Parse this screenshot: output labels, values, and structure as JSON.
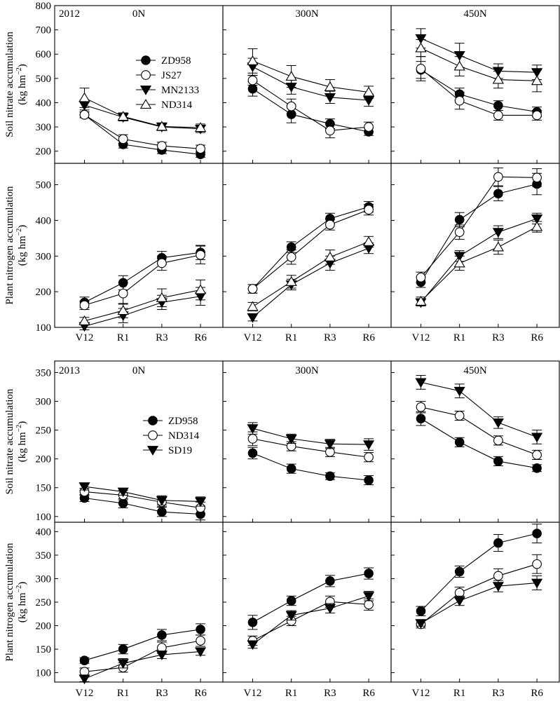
{
  "figure": {
    "x_categories": [
      "V12",
      "R1",
      "R3",
      "R6"
    ],
    "columns": [
      "0N",
      "300N",
      "450N"
    ],
    "y_axis_labels": {
      "soil": {
        "line1": "Soil nitrate accumulation",
        "line2_base": "(kg hm",
        "line2_sup": "−2",
        "line2_end": ")"
      },
      "plant": {
        "line1": "Plant nitrogen accumulation",
        "line2_base": "(kg hm",
        "line2_sup": "−2",
        "line2_end": ")"
      }
    }
  },
  "chart_data": [
    {
      "type": "line",
      "block": "2012",
      "year_label": "2012",
      "show_legend": true,
      "legend_location": "upper-left panel (0N soil)",
      "categories": [
        "V12",
        "R1",
        "R3",
        "R6"
      ],
      "series_styles": [
        {
          "name": "ZD958",
          "marker": "filled-circle"
        },
        {
          "name": "JS27",
          "marker": "open-circle"
        },
        {
          "name": "MN2133",
          "marker": "filled-triangle-down"
        },
        {
          "name": "ND314",
          "marker": "open-triangle-up"
        }
      ],
      "rows": [
        {
          "key": "soil",
          "ylim": [
            150,
            800
          ],
          "yticks": [
            200,
            300,
            400,
            500,
            600,
            700,
            800
          ],
          "panels": [
            {
              "column": "0N",
              "series": [
                {
                  "name": "ZD958",
                  "values": [
                    350,
                    228,
                    205,
                    187
                  ],
                  "errors": [
                    12,
                    15,
                    15,
                    12
                  ]
                },
                {
                  "name": "JS27",
                  "values": [
                    350,
                    250,
                    222,
                    210
                  ],
                  "errors": [
                    12,
                    18,
                    15,
                    15
                  ]
                },
                {
                  "name": "MN2133",
                  "values": [
                    390,
                    340,
                    300,
                    292
                  ],
                  "errors": [
                    20,
                    15,
                    15,
                    15
                  ]
                },
                {
                  "name": "ND314",
                  "values": [
                    420,
                    343,
                    302,
                    297
                  ],
                  "errors": [
                    40,
                    15,
                    15,
                    15
                  ]
                }
              ]
            },
            {
              "column": "300N",
              "series": [
                {
                  "name": "ZD958",
                  "values": [
                    457,
                    352,
                    313,
                    280
                  ],
                  "errors": [
                    30,
                    35,
                    20,
                    15
                  ]
                },
                {
                  "name": "JS27",
                  "values": [
                    492,
                    385,
                    285,
                    300
                  ],
                  "errors": [
                    20,
                    30,
                    30,
                    20
                  ]
                },
                {
                  "name": "MN2133",
                  "values": [
                    548,
                    465,
                    422,
                    410
                  ],
                  "errors": [
                    35,
                    30,
                    25,
                    25
                  ]
                },
                {
                  "name": "ND314",
                  "values": [
                    572,
                    508,
                    465,
                    443
                  ],
                  "errors": [
                    50,
                    45,
                    30,
                    25
                  ]
                }
              ]
            },
            {
              "column": "450N",
              "series": [
                {
                  "name": "ZD958",
                  "values": [
                    535,
                    435,
                    388,
                    362
                  ],
                  "errors": [
                    35,
                    25,
                    20,
                    20
                  ]
                },
                {
                  "name": "JS27",
                  "values": [
                    540,
                    408,
                    348,
                    348
                  ],
                  "errors": [
                    50,
                    35,
                    20,
                    20
                  ]
                },
                {
                  "name": "MN2133",
                  "values": [
                    665,
                    595,
                    530,
                    525
                  ],
                  "errors": [
                    40,
                    50,
                    30,
                    30
                  ]
                },
                {
                  "name": "ND314",
                  "values": [
                    625,
                    550,
                    495,
                    490
                  ],
                  "errors": [
                    35,
                    40,
                    35,
                    45
                  ]
                }
              ]
            }
          ]
        },
        {
          "key": "plant",
          "ylim": [
            100,
            560
          ],
          "yticks": [
            100,
            200,
            300,
            400,
            500
          ],
          "panels": [
            {
              "column": "0N",
              "series": [
                {
                  "name": "ZD958",
                  "values": [
                    170,
                    225,
                    295,
                    310
                  ],
                  "errors": [
                    15,
                    20,
                    18,
                    20
                  ]
                },
                {
                  "name": "JS27",
                  "values": [
                    162,
                    195,
                    280,
                    303
                  ],
                  "errors": [
                    12,
                    30,
                    20,
                    25
                  ]
                },
                {
                  "name": "MN2133",
                  "values": [
                    103,
                    133,
                    170,
                    187
                  ],
                  "errors": [
                    10,
                    20,
                    20,
                    25
                  ]
                },
                {
                  "name": "ND314",
                  "values": [
                    118,
                    147,
                    183,
                    205
                  ],
                  "errors": [
                    10,
                    20,
                    25,
                    28
                  ]
                }
              ]
            },
            {
              "column": "300N",
              "series": [
                {
                  "name": "ZD958",
                  "values": [
                    208,
                    325,
                    405,
                    438
                  ],
                  "errors": [
                    12,
                    15,
                    15,
                    15
                  ]
                },
                {
                  "name": "JS27",
                  "values": [
                    208,
                    297,
                    388,
                    430
                  ],
                  "errors": [
                    12,
                    20,
                    15,
                    15
                  ]
                },
                {
                  "name": "MN2133",
                  "values": [
                    128,
                    220,
                    280,
                    322
                  ],
                  "errors": [
                    10,
                    15,
                    20,
                    15
                  ]
                },
                {
                  "name": "ND314",
                  "values": [
                    158,
                    228,
                    297,
                    340
                  ],
                  "errors": [
                    12,
                    18,
                    20,
                    15
                  ]
                }
              ]
            },
            {
              "column": "450N",
              "series": [
                {
                  "name": "ZD958",
                  "values": [
                    227,
                    402,
                    475,
                    502
                  ],
                  "errors": [
                    15,
                    20,
                    20,
                    30
                  ]
                },
                {
                  "name": "JS27",
                  "values": [
                    240,
                    367,
                    522,
                    520
                  ],
                  "errors": [
                    15,
                    20,
                    25,
                    25
                  ]
                },
                {
                  "name": "MN2133",
                  "values": [
                    170,
                    300,
                    367,
                    405
                  ],
                  "errors": [
                    10,
                    15,
                    18,
                    15
                  ]
                },
                {
                  "name": "ND314",
                  "values": [
                    173,
                    280,
                    325,
                    382
                  ],
                  "errors": [
                    12,
                    20,
                    20,
                    15
                  ]
                }
              ]
            }
          ]
        }
      ]
    },
    {
      "type": "line",
      "block": "2013",
      "year_label": "2013",
      "show_legend": true,
      "legend_location": "upper-left panel (0N soil)",
      "categories": [
        "V12",
        "R1",
        "R3",
        "R6"
      ],
      "series_styles": [
        {
          "name": "ZD958",
          "marker": "filled-circle"
        },
        {
          "name": "ND314",
          "marker": "open-circle"
        },
        {
          "name": "SD19",
          "marker": "filled-triangle-down"
        }
      ],
      "rows": [
        {
          "key": "soil",
          "ylim": [
            90,
            370
          ],
          "yticks": [
            100,
            150,
            200,
            250,
            300,
            350
          ],
          "panels": [
            {
              "column": "0N",
              "series": [
                {
                  "name": "ZD958",
                  "values": [
                    132,
                    123,
                    108,
                    104
                  ],
                  "errors": [
                    6,
                    8,
                    8,
                    10
                  ]
                },
                {
                  "name": "ND314",
                  "values": [
                    143,
                    137,
                    125,
                    115
                  ],
                  "errors": [
                    6,
                    8,
                    8,
                    10
                  ]
                },
                {
                  "name": "SD19",
                  "values": [
                    152,
                    143,
                    128,
                    126
                  ],
                  "errors": [
                    6,
                    6,
                    8,
                    8
                  ]
                }
              ]
            },
            {
              "column": "300N",
              "series": [
                {
                  "name": "ZD958",
                  "values": [
                    210,
                    183,
                    170,
                    163
                  ],
                  "errors": [
                    10,
                    8,
                    6,
                    8
                  ]
                },
                {
                  "name": "ND314",
                  "values": [
                    235,
                    222,
                    212,
                    203
                  ],
                  "errors": [
                    12,
                    8,
                    8,
                    8
                  ]
                },
                {
                  "name": "SD19",
                  "values": [
                    253,
                    235,
                    226,
                    225
                  ],
                  "errors": [
                    10,
                    8,
                    8,
                    10
                  ]
                }
              ]
            },
            {
              "column": "450N",
              "series": [
                {
                  "name": "ZD958",
                  "values": [
                    270,
                    229,
                    196,
                    184
                  ],
                  "errors": [
                    12,
                    8,
                    8,
                    6
                  ]
                },
                {
                  "name": "ND314",
                  "values": [
                    290,
                    275,
                    232,
                    207
                  ],
                  "errors": [
                    10,
                    8,
                    8,
                    8
                  ]
                },
                {
                  "name": "SD19",
                  "values": [
                    333,
                    318,
                    263,
                    238
                  ],
                  "errors": [
                    12,
                    12,
                    10,
                    12
                  ]
                }
              ]
            }
          ]
        },
        {
          "key": "plant",
          "ylim": [
            80,
            420
          ],
          "yticks": [
            100,
            150,
            200,
            250,
            300,
            350,
            400
          ],
          "panels": [
            {
              "column": "0N",
              "series": [
                {
                  "name": "ZD958",
                  "values": [
                    126,
                    150,
                    180,
                    192
                  ],
                  "errors": [
                    6,
                    10,
                    12,
                    12
                  ]
                },
                {
                  "name": "ND314",
                  "values": [
                    102,
                    111,
                    153,
                    168
                  ],
                  "errors": [
                    8,
                    10,
                    12,
                    12
                  ]
                },
                {
                  "name": "SD19",
                  "values": [
                    87,
                    120,
                    138,
                    145
                  ],
                  "errors": [
                    6,
                    10,
                    8,
                    8
                  ]
                }
              ]
            },
            {
              "column": "300N",
              "series": [
                {
                  "name": "ZD958",
                  "values": [
                    207,
                    253,
                    295,
                    311
                  ],
                  "errors": [
                    15,
                    10,
                    12,
                    12
                  ]
                },
                {
                  "name": "ND314",
                  "values": [
                    168,
                    210,
                    251,
                    245
                  ],
                  "errors": [
                    10,
                    10,
                    12,
                    12
                  ]
                },
                {
                  "name": "SD19",
                  "values": [
                    160,
                    222,
                    237,
                    263
                  ],
                  "errors": [
                    8,
                    10,
                    10,
                    10
                  ]
                }
              ]
            },
            {
              "column": "450N",
              "series": [
                {
                  "name": "ZD958",
                  "values": [
                    231,
                    315,
                    376,
                    396
                  ],
                  "errors": [
                    10,
                    12,
                    18,
                    20
                  ]
                },
                {
                  "name": "ND314",
                  "values": [
                    203,
                    270,
                    306,
                    331
                  ],
                  "errors": [
                    8,
                    12,
                    15,
                    20
                  ]
                },
                {
                  "name": "SD19",
                  "values": [
                    205,
                    253,
                    284,
                    291
                  ],
                  "errors": [
                    6,
                    10,
                    12,
                    15
                  ]
                }
              ]
            }
          ]
        }
      ]
    }
  ]
}
